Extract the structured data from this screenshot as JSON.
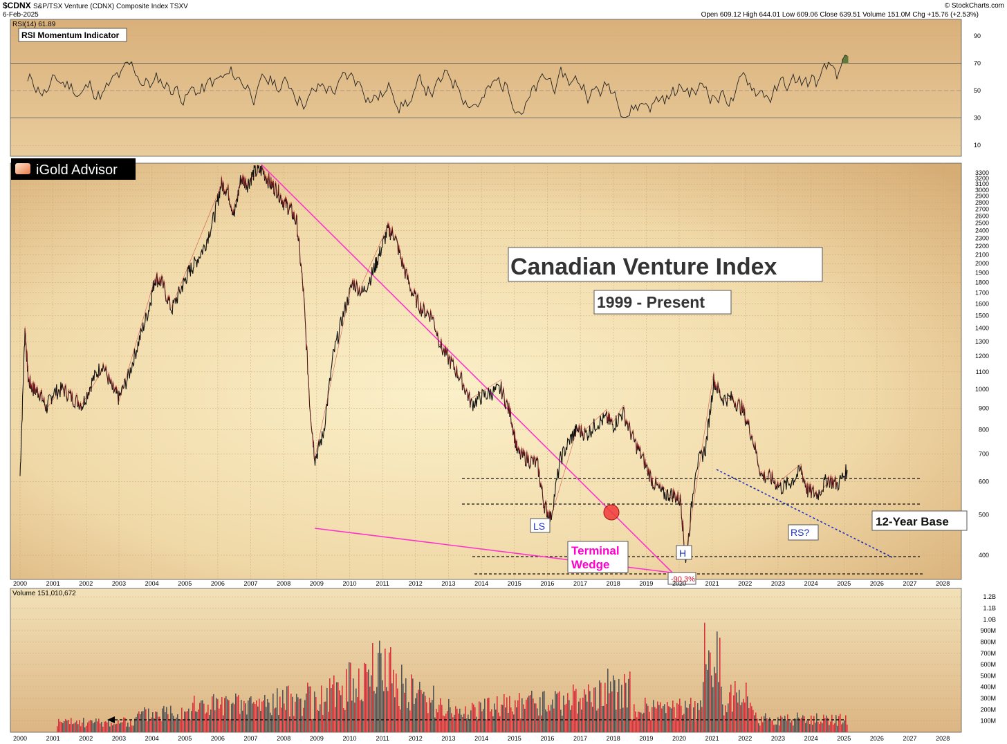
{
  "header": {
    "symbol": "$CDNX",
    "name": "S&P/TSX Venture (CDNX) Composite Index  TSXV",
    "date": "6-Feb-2025",
    "quote": "Open 609.12  High 644.01  Low 609.06  Close 639.51  Volume 151.0M  Chg +15.76 (+2.53%)",
    "source": "© StockCharts.com"
  },
  "rsi_panel": {
    "legend": "RSI(14) 61.89",
    "box_label": "RSI Momentum Indicator",
    "ticks": [
      "90",
      "70",
      "50",
      "30",
      "10"
    ],
    "overbought": 70,
    "oversold": 30
  },
  "brand": "iGold Advisor",
  "annotations": {
    "title": "Canadian Venture Index",
    "subtitle": "1999 - Present",
    "base": "12-Year Base",
    "ls": "LS",
    "h": "H",
    "rs": "RS?",
    "wedge1": "Terminal",
    "wedge2": "Wedge",
    "decline": "-90.3%"
  },
  "volume_panel": {
    "legend": "Volume 151,010,672",
    "ticks": [
      "1.2B",
      "1.1B",
      "1.0B",
      "900M",
      "800M",
      "700M",
      "600M",
      "500M",
      "400M",
      "300M",
      "200M",
      "100M"
    ]
  },
  "colors": {
    "panel_bg": "#e8cfa3",
    "wedge": "#ff33cc",
    "trend": "#1a2fbf",
    "rsi_green": "#5f7a3a",
    "rsi_red": "#8a4a38",
    "vol_red": "#d8323c",
    "vol_gray": "#555555"
  },
  "chart_data": {
    "type": "line",
    "title": "Canadian Venture Index",
    "subtitle": "1999 - Present",
    "x_ticks": [
      "2000",
      "2001",
      "2002",
      "2003",
      "2004",
      "2005",
      "2006",
      "2007",
      "2008",
      "2009",
      "2010",
      "2011",
      "2012",
      "2013",
      "2014",
      "2015",
      "2016",
      "2017",
      "2018",
      "2019",
      "2020",
      "2021",
      "2022",
      "2023",
      "2024",
      "2025",
      "2026",
      "2027",
      "2028"
    ],
    "y_ticks": [
      "3300",
      "3200",
      "3100",
      "3000",
      "2900",
      "2800",
      "2700",
      "2600",
      "2500",
      "2400",
      "2300",
      "2200",
      "2100",
      "2000",
      "1900",
      "1800",
      "1700",
      "1600",
      "1500",
      "1400",
      "1300",
      "1200",
      "1100",
      "1000",
      "900",
      "800",
      "700",
      "600",
      "500",
      "400"
    ],
    "ylim": [
      350,
      3400
    ],
    "xlim": [
      2000,
      2028.5
    ],
    "log_scale": true,
    "series": [
      {
        "x": [
          2000.0,
          2000.15,
          2000.25,
          2000.4,
          2000.6,
          2000.8,
          2001.0,
          2001.3,
          2001.6,
          2001.9,
          2002.2,
          2002.5,
          2002.8,
          2003.0,
          2003.3,
          2003.6,
          2003.9,
          2004.1,
          2004.3,
          2004.6,
          2004.9,
          2005.1,
          2005.3,
          2005.6,
          2005.9,
          2006.1,
          2006.3,
          2006.5,
          2006.7,
          2006.9,
          2007.1,
          2007.35,
          2007.6,
          2007.8,
          2008.0,
          2008.2,
          2008.4,
          2008.6,
          2008.8,
          2008.95,
          2009.2,
          2009.5,
          2009.8,
          2010.1,
          2010.4,
          2010.7,
          2010.9,
          2011.15,
          2011.35,
          2011.6,
          2011.9,
          2012.2,
          2012.5,
          2012.8,
          2013.1,
          2013.4,
          2013.7,
          2014.0,
          2014.3,
          2014.6,
          2014.9,
          2015.1,
          2015.4,
          2015.7,
          2015.9,
          2016.1,
          2016.4,
          2016.7,
          2016.9,
          2017.2,
          2017.5,
          2017.8,
          2018.0,
          2018.3,
          2018.6,
          2018.9,
          2019.2,
          2019.5,
          2019.8,
          2020.05,
          2020.2,
          2020.5,
          2020.8,
          2021.05,
          2021.3,
          2021.6,
          2021.9,
          2022.2,
          2022.5,
          2022.8,
          2023.1,
          2023.4,
          2023.7,
          2023.9,
          2024.2,
          2024.5,
          2024.8,
          2025.1
        ],
        "y": [
          620,
          1400,
          1050,
          1000,
          980,
          900,
          980,
          1000,
          950,
          920,
          1050,
          1150,
          1000,
          950,
          1080,
          1300,
          1550,
          1850,
          1800,
          1550,
          1750,
          1900,
          2000,
          2200,
          2600,
          3100,
          3000,
          2600,
          3200,
          3100,
          3300,
          3350,
          3100,
          3000,
          2800,
          2700,
          2500,
          1700,
          900,
          680,
          780,
          1200,
          1500,
          1800,
          1700,
          1900,
          2100,
          2400,
          2350,
          2000,
          1700,
          1550,
          1500,
          1250,
          1150,
          1050,
          920,
          960,
          980,
          1000,
          860,
          700,
          680,
          660,
          530,
          490,
          680,
          760,
          800,
          780,
          830,
          850,
          820,
          880,
          760,
          680,
          600,
          560,
          560,
          540,
          380,
          650,
          720,
          1050,
          950,
          950,
          900,
          780,
          620,
          610,
          580,
          600,
          640,
          570,
          560,
          610,
          590,
          640
        ]
      }
    ]
  }
}
